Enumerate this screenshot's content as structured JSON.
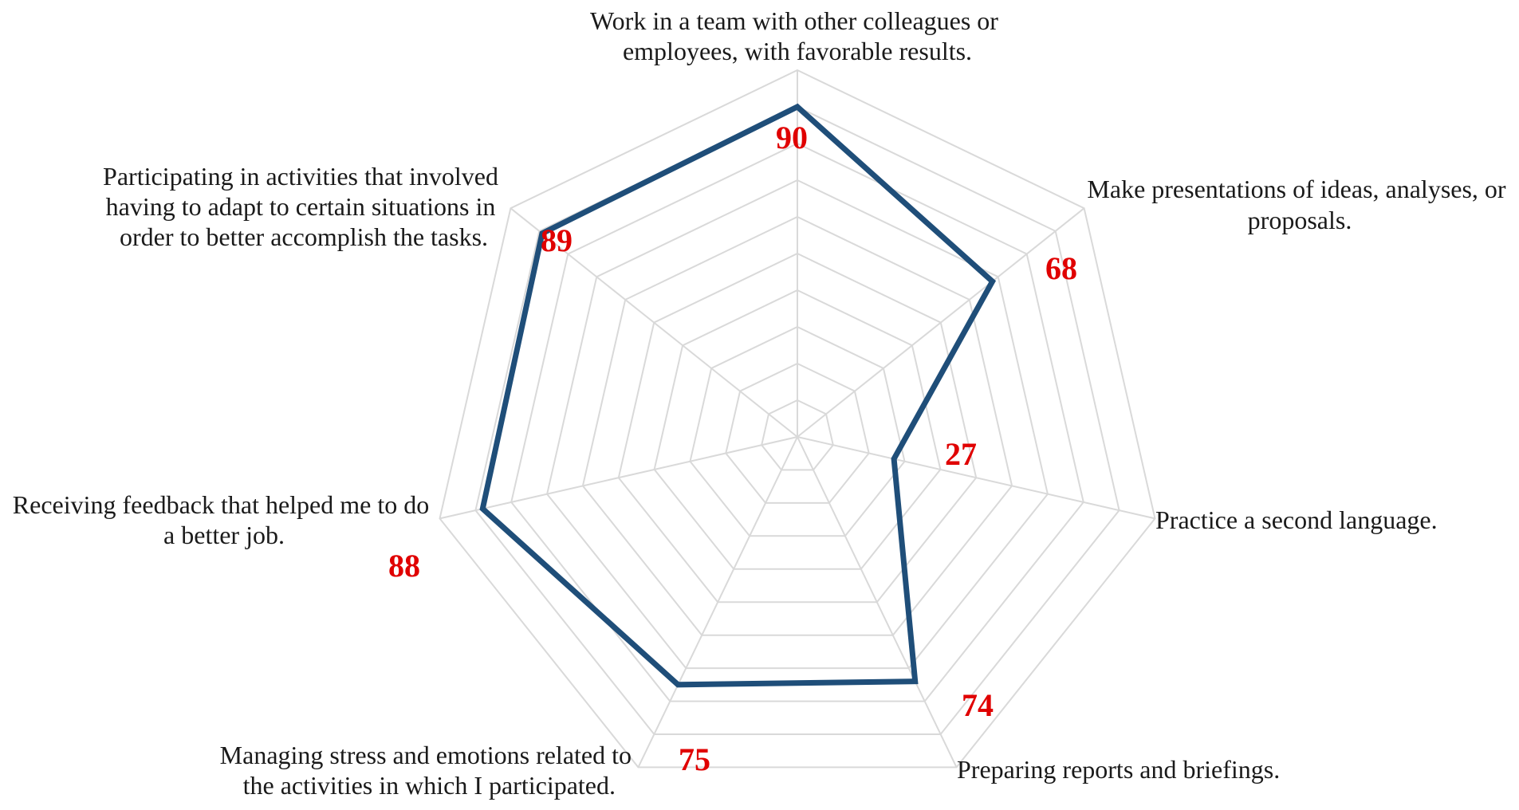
{
  "chart_data": {
    "type": "radar",
    "title": "",
    "categories": [
      "Work in a team with other colleagues or employees, with favorable results.",
      "Make presentations of ideas, analyses, or proposals.",
      "Practice a second language.",
      "Preparing reports and briefings.",
      "Managing stress and emotions related to the activities in which I participated.",
      "Receiving feedback that helped me to do a better job.",
      "Participating in activities that involved having to adapt to certain situations in order to better accomplish the tasks."
    ],
    "category_lines": [
      [
        "Work in a team with other colleagues or",
        "employees, with favorable results."
      ],
      [
        "Make presentations of ideas, analyses, or",
        "proposals."
      ],
      [
        "Practice a second language."
      ],
      [
        "Preparing reports and briefings."
      ],
      [
        "Managing stress and emotions related to",
        "the activities in which I participated."
      ],
      [
        "Receiving feedback that helped me to do",
        "a better job."
      ],
      [
        "Participating in activities that involved",
        "having to adapt to certain situations in",
        "order to better accomplish the tasks."
      ]
    ],
    "values": [
      90,
      68,
      27,
      74,
      75,
      88,
      89
    ],
    "value_labels": [
      "90",
      "68",
      "27",
      "74",
      "75",
      "88",
      "89"
    ],
    "rlim": [
      0,
      100
    ],
    "gridlines": 10,
    "grid": true,
    "legend": "none"
  },
  "colors": {
    "series_line": "#1f4e79",
    "grid": "#d9d9d9",
    "value_label": "#e00000"
  }
}
